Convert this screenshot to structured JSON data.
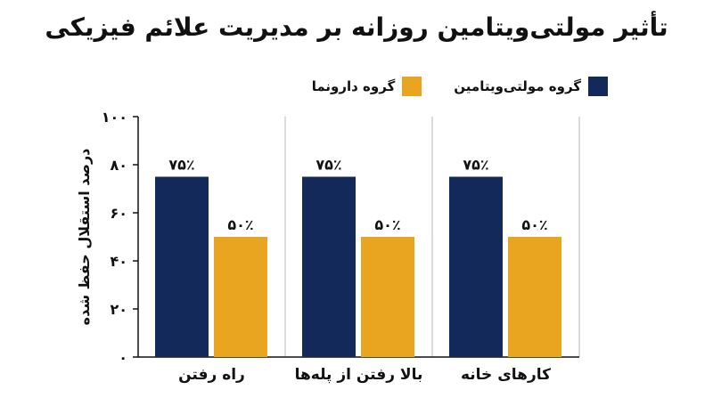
{
  "colors": {
    "multivitamin": "#13295a",
    "placebo": "#eaa520",
    "grid": "#b5b5b5",
    "axis": "#111111"
  },
  "chart_data": {
    "type": "bar",
    "title": "تأثیر مولتی‌ویتامین روزانه بر مدیریت علائم فیزیکی",
    "ylabel": "درصد استقلال حفظ شده",
    "xlabel": "",
    "ylim": [
      0,
      100
    ],
    "yticks": [
      {
        "value": 0,
        "label": "۰"
      },
      {
        "value": 20,
        "label": "۲۰"
      },
      {
        "value": 40,
        "label": "۴۰"
      },
      {
        "value": 60,
        "label": "۶۰"
      },
      {
        "value": 80,
        "label": "۸۰"
      },
      {
        "value": 100,
        "label": "۱۰۰"
      }
    ],
    "grid": true,
    "legend_position": "top-right",
    "categories": [
      "راه رفتن",
      "بالا رفتن از پله‌ها",
      "کارهای خانه"
    ],
    "series": [
      {
        "name": "گروه مولتی‌ویتامین",
        "color": "#13295a",
        "values": [
          75,
          75,
          75
        ],
        "labels": [
          "۷۵٪",
          "۷۵٪",
          "۷۵٪"
        ]
      },
      {
        "name": "گروه دارونما",
        "color": "#eaa520",
        "values": [
          50,
          50,
          50
        ],
        "labels": [
          "۵۰٪",
          "۵۰٪",
          "۵۰٪"
        ]
      }
    ]
  }
}
